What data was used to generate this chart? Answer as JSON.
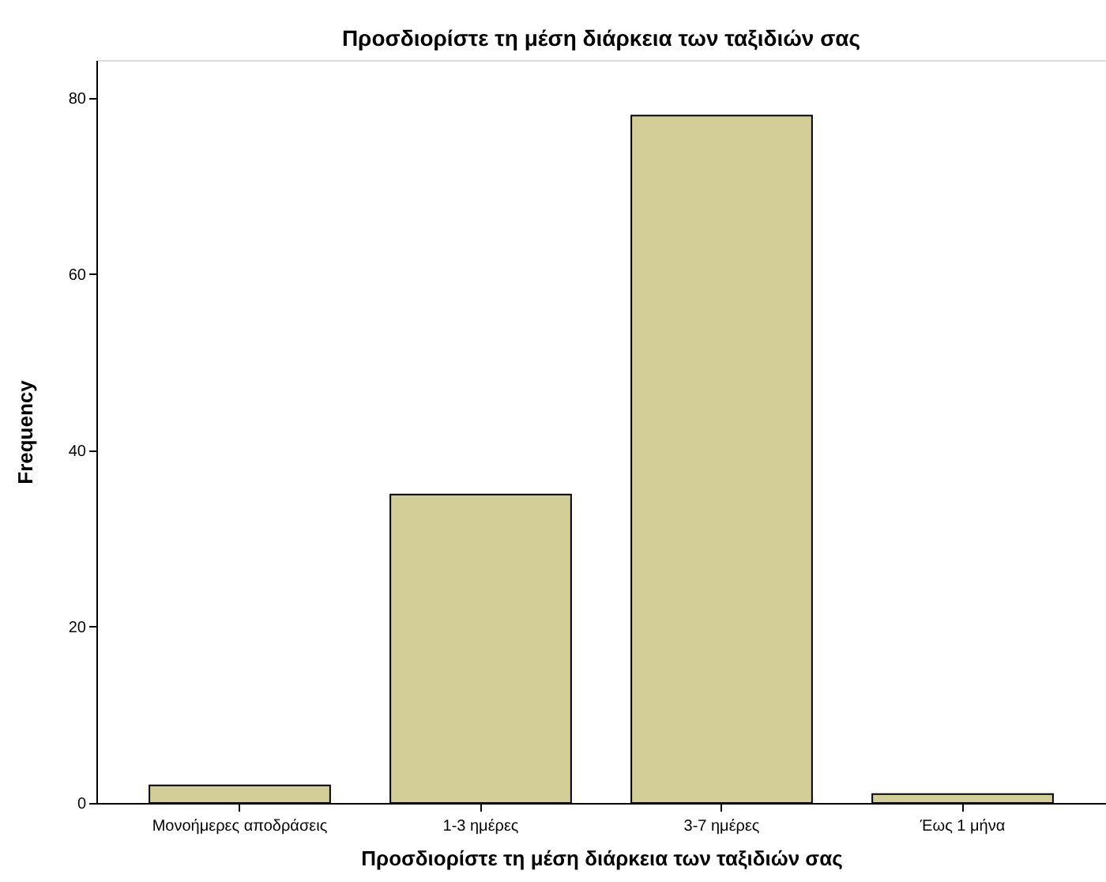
{
  "chart_data": {
    "type": "bar",
    "title": "Προσδιορίστε τη μέση διάρκεια των ταξιδιών σας",
    "xlabel": "Προσδιορίστε τη μέση διάρκεια των ταξιδιών σας",
    "ylabel": "Frequency",
    "categories": [
      "Μονοήμερες αποδράσεις",
      "1-3 ημέρες",
      "3-7 ημέρες",
      "Έως 1 μήνα"
    ],
    "values": [
      2,
      35,
      78,
      1
    ],
    "color": "#d3ce97",
    "ylim": [
      0,
      84.3
    ],
    "yticks": [
      0,
      20,
      40,
      60,
      80
    ],
    "grid": false
  }
}
